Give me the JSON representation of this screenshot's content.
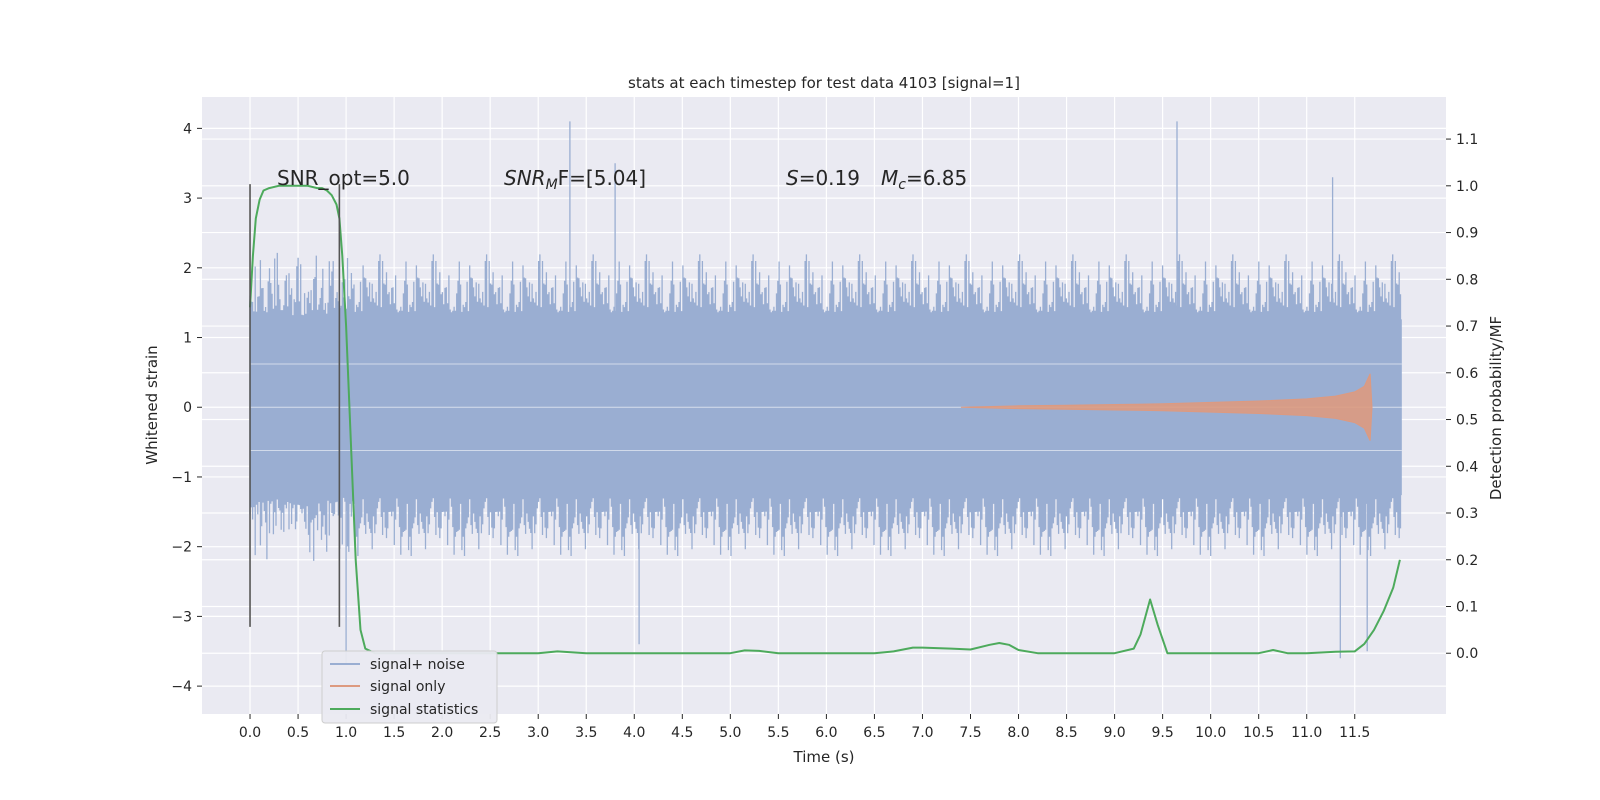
{
  "chart_data": {
    "type": "line",
    "title": "stats at each timestep for test data 4103 [signal=1]",
    "xlabel": "Time (s)",
    "ylabel": "Whitened strain",
    "y2label": "Detection probability/MF",
    "xlim": [
      -0.5,
      12.45
    ],
    "ylim": [
      -4.4,
      4.45
    ],
    "y2lim": [
      -0.13,
      1.19
    ],
    "xticks": [
      0.0,
      0.5,
      1.0,
      1.5,
      2.0,
      2.5,
      3.0,
      3.5,
      4.0,
      4.5,
      5.0,
      5.5,
      6.0,
      6.5,
      7.0,
      7.5,
      8.0,
      8.5,
      9.0,
      9.5,
      10.0,
      10.5,
      11.0,
      11.5
    ],
    "xtick_labels": [
      "0.0",
      "0.5",
      "1.0",
      "1.5",
      "2.0",
      "2.5",
      "3.0",
      "3.5",
      "4.0",
      "4.5",
      "5.0",
      "5.5",
      "6.0",
      "6.5",
      "7.0",
      "7.5",
      "8.0",
      "8.5",
      "9.0",
      "9.5",
      "10.0",
      "10.5",
      "11.0",
      "11.5"
    ],
    "yticks": [
      4,
      3,
      2,
      1,
      0,
      -1,
      -2,
      -3,
      -4
    ],
    "ytick_labels": [
      "4",
      "3",
      "2",
      "1",
      "0",
      "−1",
      "−2",
      "−3",
      "−4"
    ],
    "y2ticks": [
      1.1,
      1.0,
      0.9,
      0.8,
      0.7,
      0.6,
      0.5,
      0.4,
      0.3,
      0.2,
      0.1,
      0.0
    ],
    "y2tick_labels": [
      "1.1",
      "1.0",
      "0.9",
      "0.8",
      "0.7",
      "0.6",
      "0.5",
      "0.4",
      "0.3",
      "0.2",
      "0.1",
      "0.0"
    ],
    "grid": true,
    "legend_position": "lower-left",
    "annotations": {
      "snr_opt": "SNR_opt=5.0",
      "snr_mf_sym": "SNR",
      "snr_mf_sub": "M",
      "snr_mf_rest": "F=[5.04]",
      "s_sym": "S",
      "s_rest": "=0.19",
      "mc_sym": "M",
      "mc_sub": "c",
      "mc_rest": "=6.85"
    },
    "vertical_markers": {
      "x": [
        0.0,
        0.93
      ],
      "y_range": [
        -3.15,
        3.2
      ],
      "color": "#555555"
    },
    "series": [
      {
        "name": "signal+ noise",
        "color": "#9aaed2",
        "x_range": [
          0.0,
          11.99
        ],
        "core_amplitude": 1.3,
        "typical_peak": 2.2,
        "notable_peaks": [
          {
            "x": 3.33,
            "y": 4.1
          },
          {
            "x": 9.65,
            "y": 4.1
          },
          {
            "x": 3.8,
            "y": 3.5
          },
          {
            "x": 11.35,
            "y": -3.6
          },
          {
            "x": 11.63,
            "y": -3.5
          },
          {
            "x": 4.05,
            "y": -3.4
          },
          {
            "x": 1.0,
            "y": -3.7
          },
          {
            "x": 11.27,
            "y": 3.3
          }
        ]
      },
      {
        "name": "signal only",
        "color": "#dd9a80",
        "x": [
          7.4,
          8.0,
          8.5,
          9.0,
          9.5,
          10.0,
          10.5,
          11.0,
          11.3,
          11.5,
          11.6,
          11.66,
          11.68
        ],
        "envelope": [
          0.0,
          0.02,
          0.03,
          0.04,
          0.05,
          0.07,
          0.09,
          0.12,
          0.16,
          0.22,
          0.3,
          0.48,
          0.0
        ]
      },
      {
        "name": "signal statistics",
        "color": "#4daa5c",
        "axis": "right",
        "x": [
          0.0,
          0.03,
          0.06,
          0.1,
          0.14,
          0.2,
          0.3,
          0.4,
          0.5,
          0.6,
          0.7,
          0.75,
          0.8,
          0.85,
          0.9,
          0.93,
          0.96,
          1.0,
          1.05,
          1.1,
          1.15,
          1.2,
          1.3,
          1.5,
          2.0,
          2.5,
          3.0,
          3.2,
          3.5,
          4.0,
          4.5,
          5.0,
          5.15,
          5.3,
          5.5,
          6.0,
          6.5,
          6.7,
          6.9,
          7.0,
          7.3,
          7.5,
          7.7,
          7.8,
          7.9,
          8.0,
          8.2,
          8.5,
          9.0,
          9.2,
          9.27,
          9.37,
          9.45,
          9.55,
          9.7,
          10.0,
          10.5,
          10.65,
          10.8,
          11.0,
          11.3,
          11.5,
          11.6,
          11.7,
          11.8,
          11.9,
          11.97
        ],
        "y": [
          0.74,
          0.85,
          0.93,
          0.97,
          0.99,
          0.995,
          1.0,
          1.0,
          1.0,
          1.0,
          0.995,
          0.995,
          0.99,
          0.98,
          0.96,
          0.93,
          0.85,
          0.7,
          0.45,
          0.2,
          0.05,
          0.01,
          0.0,
          0.0,
          0.0,
          0.0,
          0.0,
          0.004,
          0.0,
          0.0,
          0.0,
          0.0,
          0.006,
          0.005,
          0.0,
          0.0,
          0.0,
          0.004,
          0.012,
          0.012,
          0.01,
          0.008,
          0.018,
          0.022,
          0.018,
          0.007,
          0.0,
          0.0,
          0.0,
          0.01,
          0.04,
          0.115,
          0.06,
          0.0,
          0.0,
          0.0,
          0.0,
          0.007,
          0.0,
          0.0,
          0.003,
          0.004,
          0.02,
          0.05,
          0.09,
          0.14,
          0.2
        ]
      }
    ]
  }
}
